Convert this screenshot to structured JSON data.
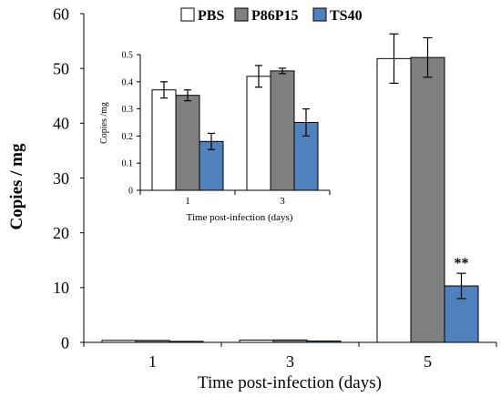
{
  "chart_data": [
    {
      "id": "main",
      "type": "bar",
      "categories": [
        "1",
        "3",
        "5"
      ],
      "series": [
        {
          "name": "PBS",
          "values": [
            0.37,
            0.42,
            51.8
          ],
          "errors": [
            0.03,
            0.04,
            4.5
          ],
          "color": "#ffffff"
        },
        {
          "name": "P86P15",
          "values": [
            0.35,
            0.44,
            52.0
          ],
          "errors": [
            0.02,
            0.01,
            3.6
          ],
          "color": "#808080"
        },
        {
          "name": "TS40",
          "values": [
            0.18,
            0.25,
            10.3
          ],
          "errors": [
            0.03,
            0.05,
            2.3
          ],
          "color": "#4f81bd"
        }
      ],
      "annotations": [
        {
          "series": "TS40",
          "category": "5",
          "text": "**"
        }
      ],
      "xlabel": "Time post-infection (days)",
      "ylabel": "Copies / mg",
      "ylim": [
        0,
        60
      ],
      "yticks": [
        "0",
        "10",
        "20",
        "30",
        "40",
        "50",
        "60"
      ],
      "legend": "top-center",
      "grid": false
    },
    {
      "id": "inset",
      "type": "bar",
      "categories": [
        "1",
        "3"
      ],
      "series": [
        {
          "name": "PBS",
          "values": [
            0.37,
            0.42
          ],
          "errors": [
            0.03,
            0.04
          ],
          "color": "#ffffff"
        },
        {
          "name": "P86P15",
          "values": [
            0.35,
            0.44
          ],
          "errors": [
            0.02,
            0.01
          ],
          "color": "#808080"
        },
        {
          "name": "TS40",
          "values": [
            0.18,
            0.25
          ],
          "errors": [
            0.03,
            0.05
          ],
          "color": "#4f81bd"
        }
      ],
      "xlabel": "Time post-infection  (days)",
      "ylabel": "Copies /mg",
      "ylim": [
        0,
        0.5
      ],
      "yticks": [
        "0",
        "0.1",
        "0.2",
        "0.3",
        "0.4",
        "0.5"
      ],
      "grid": false
    }
  ]
}
